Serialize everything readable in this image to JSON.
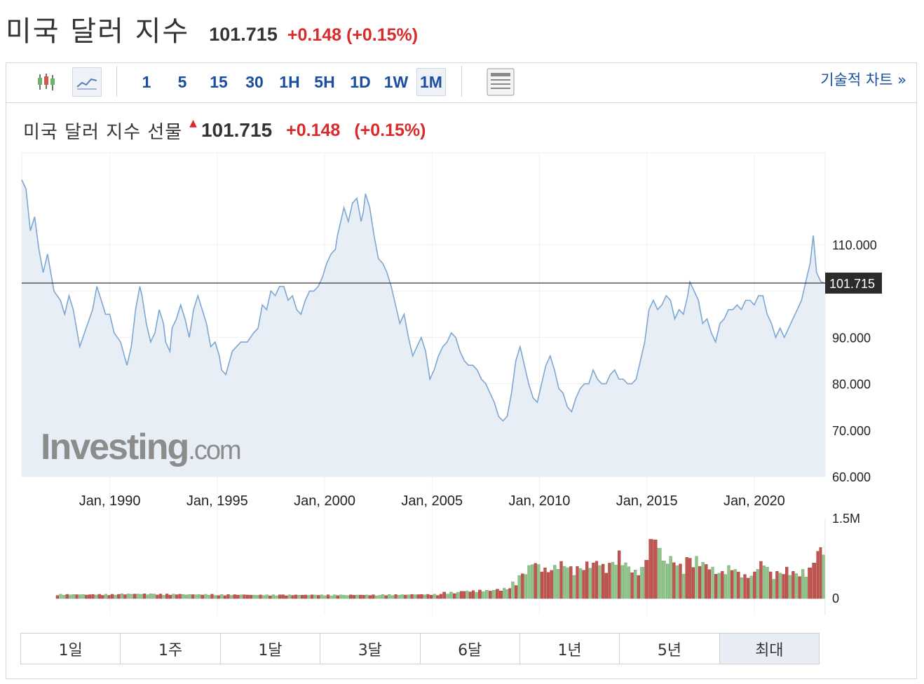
{
  "header": {
    "title": "미국 달러 지수",
    "price": "101.715",
    "change": "+0.148 (+0.15%)"
  },
  "toolbar": {
    "intervals": [
      "1",
      "5",
      "15",
      "30",
      "1H",
      "5H",
      "1D",
      "1W",
      "1M"
    ],
    "active_interval": "1M",
    "tech_chart_label": "기술적 차트 »"
  },
  "chart_header": {
    "title": "미국 달러 지수 선물",
    "price": "101.715",
    "change": "+0.148",
    "change_pct": "(+0.15%)"
  },
  "watermark": {
    "brand": "Investing",
    "suffix": ".com"
  },
  "ranges": [
    "1일",
    "1주",
    "1달",
    "3달",
    "6달",
    "1년",
    "5년",
    "최대"
  ],
  "active_range": "최대",
  "colors": {
    "line": "#7ea6d1",
    "area": "#e8eef6",
    "up": "#91c48c",
    "down": "#c25550",
    "change": "#d92b2b",
    "link": "#1a4ea1"
  },
  "chart_data": {
    "type": "area",
    "title": "미국 달러 지수 선물",
    "x_start": 1985.9,
    "x_end": 2023.3,
    "x_ticks": [
      {
        "x": 1990,
        "label": "Jan, 1990"
      },
      {
        "x": 1995,
        "label": "Jan, 1995"
      },
      {
        "x": 2000,
        "label": "Jan, 2000"
      },
      {
        "x": 2005,
        "label": "Jan, 2005"
      },
      {
        "x": 2010,
        "label": "Jan, 2010"
      },
      {
        "x": 2015,
        "label": "Jan, 2015"
      },
      {
        "x": 2020,
        "label": "Jan, 2020"
      }
    ],
    "y_ticks": [
      "110.000",
      "90.000",
      "80.000",
      "70.000",
      "60.000"
    ],
    "ylim": [
      60,
      128
    ],
    "last_price": 101.715,
    "last_price_label": "101.715",
    "series": [
      {
        "points": [
          [
            1985.9,
            124
          ],
          [
            1986.1,
            122
          ],
          [
            1986.3,
            113
          ],
          [
            1986.5,
            116
          ],
          [
            1986.7,
            109
          ],
          [
            1986.9,
            104
          ],
          [
            1987.1,
            108
          ],
          [
            1987.4,
            100
          ],
          [
            1987.7,
            98
          ],
          [
            1987.9,
            95
          ],
          [
            1988.1,
            99
          ],
          [
            1988.3,
            96
          ],
          [
            1988.6,
            88
          ],
          [
            1988.9,
            92
          ],
          [
            1989.2,
            96
          ],
          [
            1989.4,
            101
          ],
          [
            1989.6,
            98
          ],
          [
            1989.8,
            95
          ],
          [
            1990.0,
            95
          ],
          [
            1990.2,
            91
          ],
          [
            1990.5,
            89
          ],
          [
            1990.8,
            84
          ],
          [
            1991.0,
            88
          ],
          [
            1991.2,
            96
          ],
          [
            1991.4,
            101
          ],
          [
            1991.5,
            99
          ],
          [
            1991.7,
            93
          ],
          [
            1991.9,
            89
          ],
          [
            1992.1,
            91
          ],
          [
            1992.3,
            96
          ],
          [
            1992.5,
            93
          ],
          [
            1992.6,
            89
          ],
          [
            1992.8,
            87
          ],
          [
            1992.9,
            92
          ],
          [
            1993.1,
            94
          ],
          [
            1993.3,
            97
          ],
          [
            1993.5,
            94
          ],
          [
            1993.7,
            90
          ],
          [
            1993.9,
            96
          ],
          [
            1994.1,
            99
          ],
          [
            1994.3,
            96
          ],
          [
            1994.5,
            93
          ],
          [
            1994.7,
            88
          ],
          [
            1994.9,
            89
          ],
          [
            1995.1,
            86
          ],
          [
            1995.2,
            83
          ],
          [
            1995.4,
            82
          ],
          [
            1995.7,
            87
          ],
          [
            1995.9,
            88
          ],
          [
            1996.1,
            89
          ],
          [
            1996.4,
            89
          ],
          [
            1996.7,
            91
          ],
          [
            1996.9,
            92
          ],
          [
            1997.1,
            97
          ],
          [
            1997.3,
            96
          ],
          [
            1997.5,
            100
          ],
          [
            1997.7,
            99
          ],
          [
            1997.9,
            101
          ],
          [
            1998.1,
            101
          ],
          [
            1998.3,
            98
          ],
          [
            1998.5,
            99
          ],
          [
            1998.7,
            96
          ],
          [
            1998.9,
            95
          ],
          [
            1999.1,
            98
          ],
          [
            1999.3,
            100
          ],
          [
            1999.5,
            100
          ],
          [
            1999.7,
            101
          ],
          [
            1999.9,
            103
          ],
          [
            2000.1,
            106
          ],
          [
            2000.3,
            108
          ],
          [
            2000.5,
            109
          ],
          [
            2000.6,
            112
          ],
          [
            2000.8,
            116
          ],
          [
            2000.9,
            118
          ],
          [
            2001.1,
            115
          ],
          [
            2001.3,
            119
          ],
          [
            2001.5,
            120
          ],
          [
            2001.7,
            115
          ],
          [
            2001.8,
            117
          ],
          [
            2001.9,
            121
          ],
          [
            2002.1,
            118
          ],
          [
            2002.3,
            112
          ],
          [
            2002.5,
            107
          ],
          [
            2002.7,
            106
          ],
          [
            2002.9,
            104
          ],
          [
            2003.1,
            101
          ],
          [
            2003.3,
            97
          ],
          [
            2003.5,
            93
          ],
          [
            2003.7,
            95
          ],
          [
            2003.9,
            90
          ],
          [
            2004.1,
            86
          ],
          [
            2004.3,
            88
          ],
          [
            2004.5,
            90
          ],
          [
            2004.7,
            87
          ],
          [
            2004.9,
            81
          ],
          [
            2005.1,
            83
          ],
          [
            2005.3,
            86
          ],
          [
            2005.5,
            88
          ],
          [
            2005.7,
            89
          ],
          [
            2005.9,
            91
          ],
          [
            2006.1,
            90
          ],
          [
            2006.3,
            87
          ],
          [
            2006.5,
            85
          ],
          [
            2006.7,
            84
          ],
          [
            2006.9,
            84
          ],
          [
            2007.1,
            83
          ],
          [
            2007.3,
            81
          ],
          [
            2007.5,
            80
          ],
          [
            2007.7,
            78
          ],
          [
            2007.9,
            76
          ],
          [
            2008.1,
            73
          ],
          [
            2008.3,
            72
          ],
          [
            2008.5,
            73
          ],
          [
            2008.7,
            78
          ],
          [
            2008.9,
            85
          ],
          [
            2009.1,
            88
          ],
          [
            2009.3,
            84
          ],
          [
            2009.5,
            80
          ],
          [
            2009.7,
            77
          ],
          [
            2009.9,
            76
          ],
          [
            2010.1,
            80
          ],
          [
            2010.3,
            84
          ],
          [
            2010.5,
            86
          ],
          [
            2010.7,
            83
          ],
          [
            2010.9,
            79
          ],
          [
            2011.1,
            78
          ],
          [
            2011.3,
            75
          ],
          [
            2011.5,
            74
          ],
          [
            2011.7,
            77
          ],
          [
            2011.9,
            79
          ],
          [
            2012.1,
            80
          ],
          [
            2012.3,
            80
          ],
          [
            2012.5,
            83
          ],
          [
            2012.7,
            81
          ],
          [
            2012.9,
            80
          ],
          [
            2013.1,
            80
          ],
          [
            2013.3,
            82
          ],
          [
            2013.5,
            83
          ],
          [
            2013.7,
            81
          ],
          [
            2013.9,
            81
          ],
          [
            2014.1,
            80
          ],
          [
            2014.3,
            80
          ],
          [
            2014.5,
            81
          ],
          [
            2014.7,
            85
          ],
          [
            2014.9,
            89
          ],
          [
            2015.1,
            96
          ],
          [
            2015.3,
            98
          ],
          [
            2015.5,
            96
          ],
          [
            2015.7,
            97
          ],
          [
            2015.9,
            99
          ],
          [
            2016.1,
            98
          ],
          [
            2016.3,
            94
          ],
          [
            2016.5,
            96
          ],
          [
            2016.7,
            95
          ],
          [
            2016.9,
            99
          ],
          [
            2017.0,
            102
          ],
          [
            2017.2,
            100
          ],
          [
            2017.4,
            98
          ],
          [
            2017.6,
            93
          ],
          [
            2017.8,
            94
          ],
          [
            2018.0,
            91
          ],
          [
            2018.2,
            89
          ],
          [
            2018.4,
            93
          ],
          [
            2018.6,
            94
          ],
          [
            2018.8,
            96
          ],
          [
            2019.0,
            96
          ],
          [
            2019.2,
            97
          ],
          [
            2019.4,
            96
          ],
          [
            2019.6,
            98
          ],
          [
            2019.8,
            98
          ],
          [
            2020.0,
            97
          ],
          [
            2020.2,
            99
          ],
          [
            2020.4,
            99
          ],
          [
            2020.6,
            95
          ],
          [
            2020.8,
            93
          ],
          [
            2021.0,
            90
          ],
          [
            2021.2,
            92
          ],
          [
            2021.4,
            90
          ],
          [
            2021.6,
            92
          ],
          [
            2021.8,
            94
          ],
          [
            2022.0,
            96
          ],
          [
            2022.2,
            98
          ],
          [
            2022.4,
            102
          ],
          [
            2022.6,
            106
          ],
          [
            2022.75,
            112
          ],
          [
            2022.9,
            104
          ],
          [
            2023.1,
            102
          ],
          [
            2023.3,
            101.7
          ]
        ]
      }
    ],
    "volume": {
      "ylim": [
        0,
        1500000
      ],
      "y_ticks": [
        "1.5M",
        "0"
      ],
      "bars": [
        [
          1987.5,
          80000,
          "g"
        ],
        [
          1989.0,
          80000,
          "r"
        ],
        [
          1990.5,
          90000,
          "g"
        ],
        [
          1992.0,
          85000,
          "r"
        ],
        [
          1993.5,
          80000,
          "g"
        ],
        [
          1995.0,
          75000,
          "r"
        ],
        [
          1996.5,
          70000,
          "g"
        ],
        [
          1998.0,
          70000,
          "r"
        ],
        [
          1999.5,
          70000,
          "g"
        ],
        [
          2001.0,
          70000,
          "r"
        ],
        [
          2002.5,
          75000,
          "g"
        ],
        [
          2004.0,
          80000,
          "r"
        ],
        [
          2005.5,
          120000,
          "g"
        ],
        [
          2006.3,
          150000,
          "r"
        ],
        [
          2007.0,
          160000,
          "g"
        ],
        [
          2007.8,
          180000,
          "r"
        ],
        [
          2008.3,
          200000,
          "g"
        ],
        [
          2008.7,
          320000,
          "g"
        ],
        [
          2009.0,
          500000,
          "r"
        ],
        [
          2009.3,
          620000,
          "g"
        ],
        [
          2009.6,
          700000,
          "g"
        ],
        [
          2009.9,
          640000,
          "r"
        ],
        [
          2010.2,
          600000,
          "r"
        ],
        [
          2010.5,
          650000,
          "r"
        ],
        [
          2010.8,
          700000,
          "r"
        ],
        [
          2011.1,
          640000,
          "g"
        ],
        [
          2011.4,
          600000,
          "r"
        ],
        [
          2011.7,
          650000,
          "g"
        ],
        [
          2012.0,
          700000,
          "r"
        ],
        [
          2012.3,
          680000,
          "g"
        ],
        [
          2012.6,
          720000,
          "g"
        ],
        [
          2012.9,
          650000,
          "r"
        ],
        [
          2013.2,
          750000,
          "r"
        ],
        [
          2013.5,
          900000,
          "r"
        ],
        [
          2013.8,
          700000,
          "g"
        ],
        [
          2014.1,
          600000,
          "g"
        ],
        [
          2014.4,
          550000,
          "r"
        ],
        [
          2014.7,
          700000,
          "g"
        ],
        [
          2014.9,
          950000,
          "r"
        ],
        [
          2015.1,
          1200000,
          "g"
        ],
        [
          2015.3,
          1100000,
          "r"
        ],
        [
          2015.5,
          1000000,
          "g"
        ],
        [
          2015.7,
          900000,
          "r"
        ],
        [
          2015.9,
          800000,
          "g"
        ],
        [
          2016.2,
          700000,
          "r"
        ],
        [
          2016.5,
          650000,
          "g"
        ],
        [
          2016.8,
          850000,
          "r"
        ],
        [
          2017.1,
          800000,
          "r"
        ],
        [
          2017.4,
          700000,
          "g"
        ],
        [
          2017.7,
          650000,
          "r"
        ],
        [
          2018.0,
          600000,
          "g"
        ],
        [
          2018.3,
          550000,
          "r"
        ],
        [
          2018.6,
          620000,
          "g"
        ],
        [
          2018.9,
          580000,
          "r"
        ],
        [
          2019.2,
          500000,
          "g"
        ],
        [
          2019.5,
          470000,
          "r"
        ],
        [
          2019.8,
          520000,
          "g"
        ],
        [
          2020.1,
          700000,
          "r"
        ],
        [
          2020.4,
          650000,
          "g"
        ],
        [
          2020.7,
          500000,
          "r"
        ],
        [
          2021.0,
          550000,
          "g"
        ],
        [
          2021.3,
          600000,
          "r"
        ],
        [
          2021.6,
          520000,
          "g"
        ],
        [
          2021.9,
          480000,
          "r"
        ],
        [
          2022.2,
          550000,
          "g"
        ],
        [
          2022.5,
          650000,
          "r"
        ],
        [
          2022.7,
          950000,
          "g"
        ],
        [
          2022.9,
          1000000,
          "r"
        ]
      ]
    }
  }
}
